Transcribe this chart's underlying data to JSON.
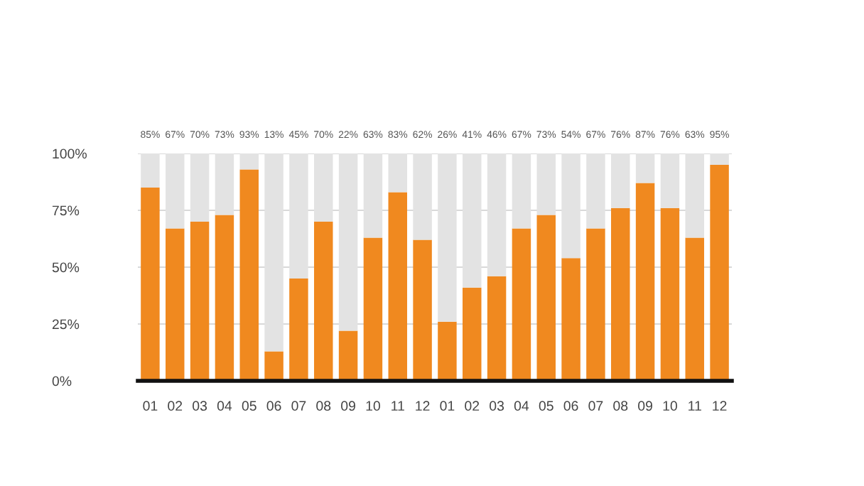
{
  "chart_data": {
    "type": "bar",
    "stacked": true,
    "categories": [
      "01",
      "02",
      "03",
      "04",
      "05",
      "06",
      "07",
      "08",
      "09",
      "10",
      "11",
      "12",
      "01",
      "02",
      "03",
      "04",
      "05",
      "06",
      "07",
      "08",
      "09",
      "10",
      "11",
      "12"
    ],
    "series": [
      {
        "color": "#f0891f",
        "values": [
          85,
          67,
          70,
          73,
          93,
          13,
          45,
          70,
          22,
          63,
          83,
          62,
          26,
          41,
          46,
          67,
          73,
          54,
          67,
          76,
          87,
          76,
          63,
          95
        ],
        "value_labels": [
          "85%",
          "67%",
          "70%",
          "73%",
          "93%",
          "13%",
          "45%",
          "70%",
          "22%",
          "63%",
          "83%",
          "62%",
          "26%",
          "41%",
          "46%",
          "67%",
          "73%",
          "54%",
          "67%",
          "76%",
          "87%",
          "76%",
          "63%",
          "95%"
        ]
      },
      {
        "color": "#e3e3e3",
        "values": [
          15,
          33,
          30,
          27,
          7,
          87,
          55,
          30,
          78,
          37,
          17,
          38,
          74,
          59,
          54,
          33,
          27,
          46,
          33,
          24,
          13,
          24,
          37,
          5
        ]
      }
    ],
    "ylim": [
      0,
      100
    ],
    "yticks": [
      {
        "value": 0,
        "label": "0%"
      },
      {
        "value": 25,
        "label": "25%"
      },
      {
        "value": 50,
        "label": "50%"
      },
      {
        "value": 75,
        "label": "75%"
      },
      {
        "value": 100,
        "label": "100%"
      }
    ],
    "grid": "y"
  }
}
